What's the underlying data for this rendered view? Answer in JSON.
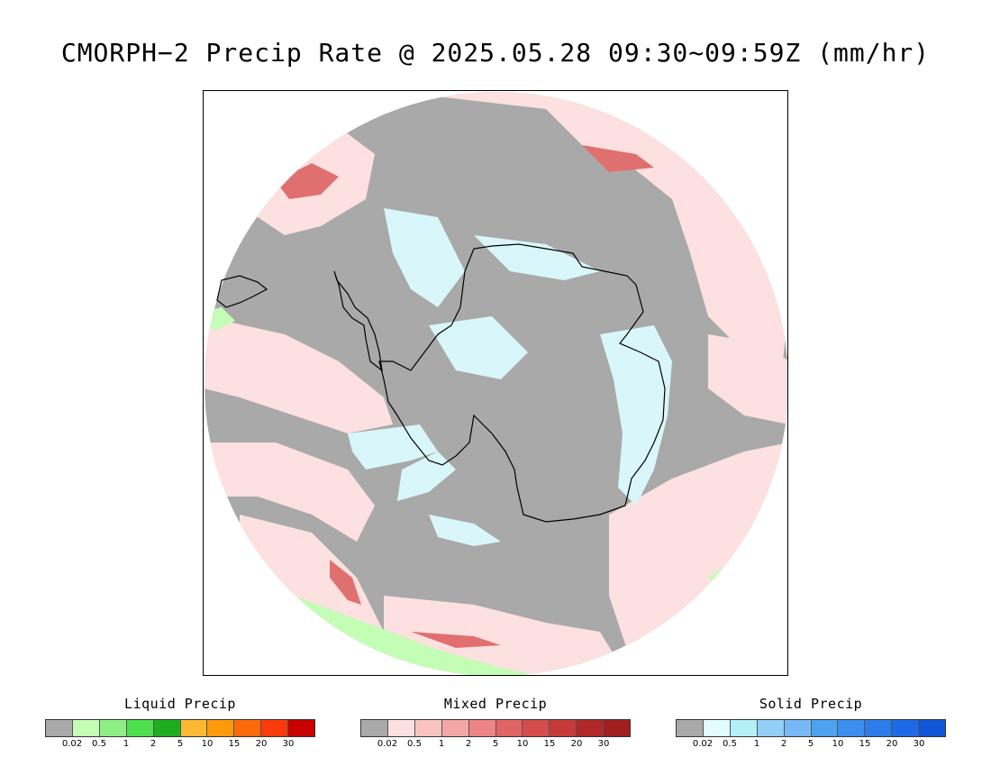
{
  "title": "CMORPH−2 Precip Rate @ 2025.05.28 09:30~09:59Z (mm/hr)",
  "map": {
    "colors": {
      "background_disc": "#a9a9a9",
      "mixed_light": "#fde0e0",
      "mixed_mid": "#f5a6a6",
      "mixed_dark": "#e07070",
      "solid_light": "#d9f7fa",
      "liquid_light": "#c3fdb6",
      "coastline": "#000000"
    }
  },
  "legends": [
    {
      "title": "Liquid Precip",
      "colors": [
        "#a9a9a9",
        "#c3fdb6",
        "#8fef86",
        "#4fe04f",
        "#1fae1f",
        "#fdb934",
        "#fd9a0a",
        "#fd6a0a",
        "#fd3a0a",
        "#c80000"
      ],
      "ticks": [
        "0.02",
        "0.5",
        "1",
        "2",
        "5",
        "10",
        "15",
        "20",
        "30"
      ]
    },
    {
      "title": "Mixed Precip",
      "colors": [
        "#a9a9a9",
        "#fde0e0",
        "#fbc4c4",
        "#f5a6a6",
        "#ee8585",
        "#e06464",
        "#d64c4c",
        "#c63a3a",
        "#b22828",
        "#a11e1e"
      ],
      "ticks": [
        "0.02",
        "0.5",
        "1",
        "2",
        "5",
        "10",
        "15",
        "20",
        "30"
      ]
    },
    {
      "title": "Solid Precip",
      "colors": [
        "#a9a9a9",
        "#e2fdfd",
        "#b3f0f8",
        "#93cff9",
        "#78b9f5",
        "#4da2f1",
        "#3a8ff0",
        "#2c7cec",
        "#1e69e6",
        "#0f57d8"
      ],
      "ticks": [
        "0.02",
        "0.5",
        "1",
        "2",
        "5",
        "10",
        "15",
        "20",
        "30"
      ]
    }
  ]
}
